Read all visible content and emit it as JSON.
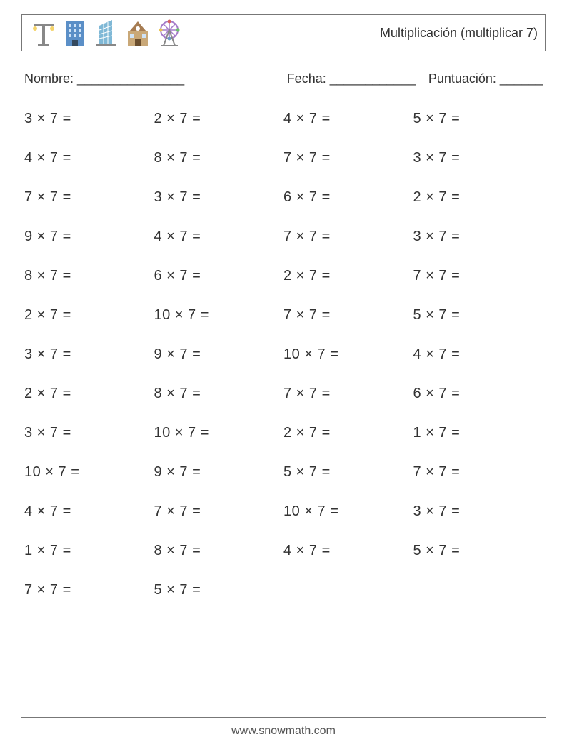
{
  "header": {
    "title": "Multiplicación (multiplicar 7)",
    "icons": [
      "streetlight",
      "office-building",
      "glass-tower",
      "school",
      "ferris-wheel"
    ]
  },
  "info": {
    "name_label": "Nombre: _______________",
    "date_label": "Fecha: ____________",
    "score_label": "Puntuación: ______"
  },
  "problems": {
    "columns": 4,
    "rows": 13,
    "operator": "×",
    "multiplier": 7,
    "font_size": 20,
    "text_color": "#333333",
    "items": [
      {
        "a": 3,
        "b": 7
      },
      {
        "a": 2,
        "b": 7
      },
      {
        "a": 4,
        "b": 7
      },
      {
        "a": 5,
        "b": 7
      },
      {
        "a": 4,
        "b": 7
      },
      {
        "a": 8,
        "b": 7
      },
      {
        "a": 7,
        "b": 7
      },
      {
        "a": 3,
        "b": 7
      },
      {
        "a": 7,
        "b": 7
      },
      {
        "a": 3,
        "b": 7
      },
      {
        "a": 6,
        "b": 7
      },
      {
        "a": 2,
        "b": 7
      },
      {
        "a": 9,
        "b": 7
      },
      {
        "a": 4,
        "b": 7
      },
      {
        "a": 7,
        "b": 7
      },
      {
        "a": 3,
        "b": 7
      },
      {
        "a": 8,
        "b": 7
      },
      {
        "a": 6,
        "b": 7
      },
      {
        "a": 2,
        "b": 7
      },
      {
        "a": 7,
        "b": 7
      },
      {
        "a": 2,
        "b": 7
      },
      {
        "a": 10,
        "b": 7
      },
      {
        "a": 7,
        "b": 7
      },
      {
        "a": 5,
        "b": 7
      },
      {
        "a": 3,
        "b": 7
      },
      {
        "a": 9,
        "b": 7
      },
      {
        "a": 10,
        "b": 7
      },
      {
        "a": 4,
        "b": 7
      },
      {
        "a": 2,
        "b": 7
      },
      {
        "a": 8,
        "b": 7
      },
      {
        "a": 7,
        "b": 7
      },
      {
        "a": 6,
        "b": 7
      },
      {
        "a": 3,
        "b": 7
      },
      {
        "a": 10,
        "b": 7
      },
      {
        "a": 2,
        "b": 7
      },
      {
        "a": 1,
        "b": 7
      },
      {
        "a": 10,
        "b": 7
      },
      {
        "a": 9,
        "b": 7
      },
      {
        "a": 5,
        "b": 7
      },
      {
        "a": 7,
        "b": 7
      },
      {
        "a": 4,
        "b": 7
      },
      {
        "a": 7,
        "b": 7
      },
      {
        "a": 10,
        "b": 7
      },
      {
        "a": 3,
        "b": 7
      },
      {
        "a": 1,
        "b": 7
      },
      {
        "a": 8,
        "b": 7
      },
      {
        "a": 4,
        "b": 7
      },
      {
        "a": 5,
        "b": 7
      },
      {
        "a": 7,
        "b": 7
      },
      {
        "a": 5,
        "b": 7
      }
    ]
  },
  "footer": {
    "url": "www.snowmath.com"
  },
  "colors": {
    "background": "#ffffff",
    "text": "#333333",
    "border": "#777777",
    "icon_blue": "#5b8fc7",
    "icon_purple": "#a47bc9",
    "icon_brown": "#a67c52",
    "icon_red": "#d66060"
  }
}
